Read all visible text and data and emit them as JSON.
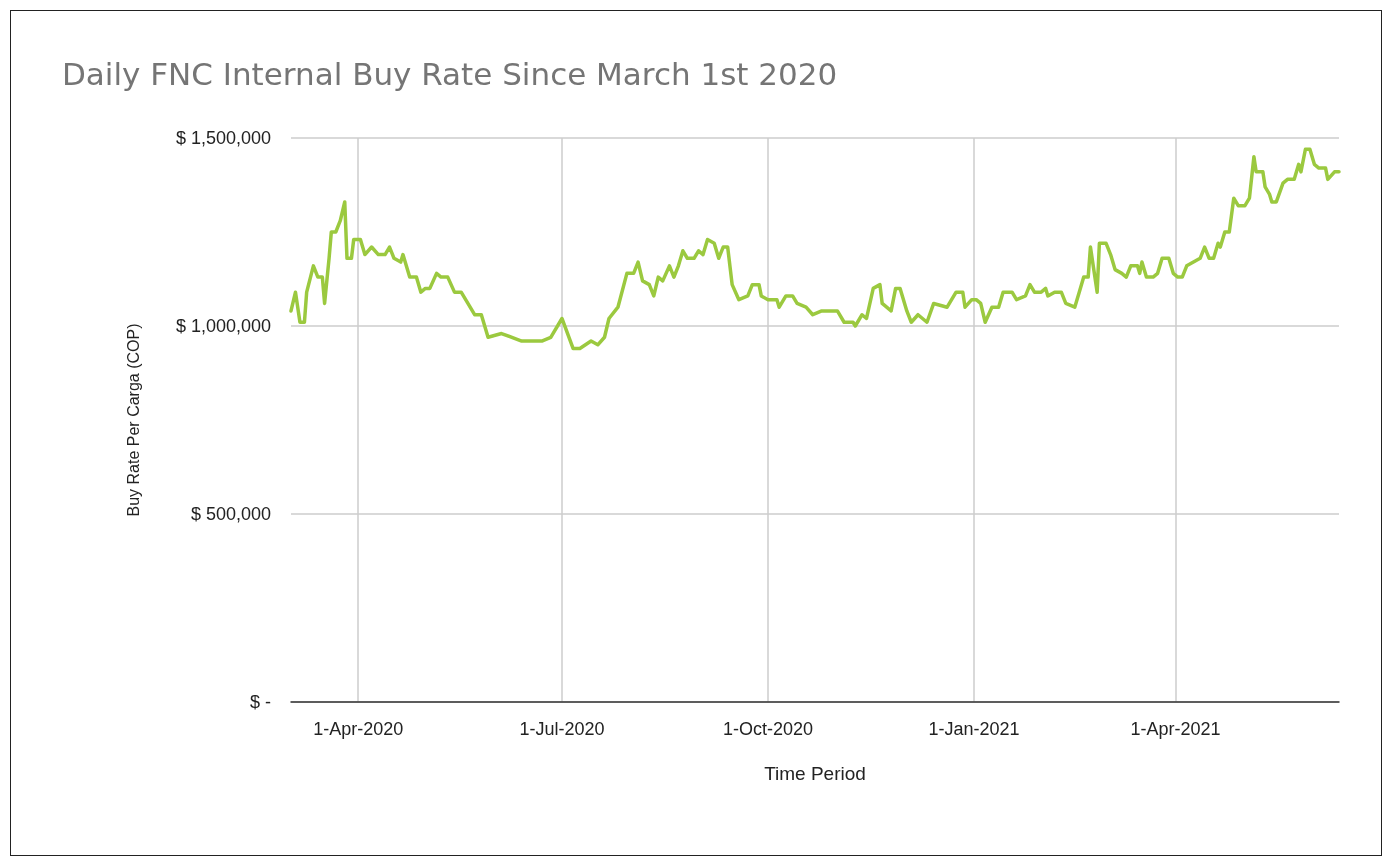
{
  "chart_data": {
    "type": "line",
    "title": "Daily FNC Internal Buy Rate Since March 1st 2020",
    "xlabel": "Time Period",
    "ylabel": "Buy Rate Per Carga (COP)",
    "xlim": [
      "2020-03-02",
      "2021-06-13"
    ],
    "xticks": [
      {
        "value": "2020-04-01",
        "label": "1-Apr-2020"
      },
      {
        "value": "2020-07-01",
        "label": "1-Jul-2020"
      },
      {
        "value": "2020-10-01",
        "label": "1-Oct-2020"
      },
      {
        "value": "2021-01-01",
        "label": "1-Jan-2021"
      },
      {
        "value": "2021-04-01",
        "label": "1-Apr-2021"
      }
    ],
    "ylim": [
      0,
      1500000
    ],
    "yticks": [
      {
        "value": 0,
        "label": "$ -"
      },
      {
        "value": 500000,
        "label": "$ 500,000"
      },
      {
        "value": 1000000,
        "label": "$ 1,000,000"
      },
      {
        "value": 1500000,
        "label": "$ 1,500,000"
      }
    ],
    "grid": true,
    "marker": "none",
    "line_style": "solid",
    "x": [
      "2020-03-02",
      "2020-03-04",
      "2020-03-06",
      "2020-03-08",
      "2020-03-09",
      "2020-03-12",
      "2020-03-14",
      "2020-03-16",
      "2020-03-17",
      "2020-03-19",
      "2020-03-20",
      "2020-03-22",
      "2020-03-24",
      "2020-03-26",
      "2020-03-27",
      "2020-03-29",
      "2020-03-30",
      "2020-04-02",
      "2020-04-04",
      "2020-04-07",
      "2020-04-10",
      "2020-04-13",
      "2020-04-15",
      "2020-04-17",
      "2020-04-20",
      "2020-04-21",
      "2020-04-24",
      "2020-04-27",
      "2020-04-29",
      "2020-05-01",
      "2020-05-03",
      "2020-05-06",
      "2020-05-08",
      "2020-05-11",
      "2020-05-14",
      "2020-05-17",
      "2020-05-20",
      "2020-05-23",
      "2020-05-26",
      "2020-05-29",
      "2020-06-04",
      "2020-06-13",
      "2020-06-22",
      "2020-06-26",
      "2020-07-01",
      "2020-07-06",
      "2020-07-09",
      "2020-07-14",
      "2020-07-17",
      "2020-07-20",
      "2020-07-22",
      "2020-07-26",
      "2020-07-30",
      "2020-08-02",
      "2020-08-04",
      "2020-08-06",
      "2020-08-09",
      "2020-08-11",
      "2020-08-13",
      "2020-08-15",
      "2020-08-18",
      "2020-08-20",
      "2020-08-22",
      "2020-08-24",
      "2020-08-26",
      "2020-08-29",
      "2020-08-31",
      "2020-09-02",
      "2020-09-04",
      "2020-09-07",
      "2020-09-09",
      "2020-09-11",
      "2020-09-13",
      "2020-09-15",
      "2020-09-18",
      "2020-09-22",
      "2020-09-24",
      "2020-09-27",
      "2020-09-28",
      "2020-10-01",
      "2020-10-05",
      "2020-10-06",
      "2020-10-09",
      "2020-10-12",
      "2020-10-14",
      "2020-10-18",
      "2020-10-21",
      "2020-10-25",
      "2020-11-01",
      "2020-11-04",
      "2020-11-08",
      "2020-11-09",
      "2020-11-12",
      "2020-11-14",
      "2020-11-17",
      "2020-11-20",
      "2020-11-21",
      "2020-11-23",
      "2020-11-25",
      "2020-11-27",
      "2020-11-29",
      "2020-12-02",
      "2020-12-04",
      "2020-12-07",
      "2020-12-11",
      "2020-12-14",
      "2020-12-20",
      "2020-12-24",
      "2020-12-27",
      "2020-12-28",
      "2020-12-31",
      "2021-01-02",
      "2021-01-04",
      "2021-01-06",
      "2021-01-09",
      "2021-01-12",
      "2021-01-14",
      "2021-01-18",
      "2021-01-20",
      "2021-01-24",
      "2021-01-26",
      "2021-01-28",
      "2021-01-31",
      "2021-02-02",
      "2021-02-03",
      "2021-02-06",
      "2021-02-09",
      "2021-02-11",
      "2021-02-15",
      "2021-02-17",
      "2021-02-19",
      "2021-02-21",
      "2021-02-22",
      "2021-02-25",
      "2021-02-26",
      "2021-03-01",
      "2021-03-03",
      "2021-03-05",
      "2021-03-08",
      "2021-03-10",
      "2021-03-12",
      "2021-03-15",
      "2021-03-16",
      "2021-03-17",
      "2021-03-19",
      "2021-03-22",
      "2021-03-24",
      "2021-03-26",
      "2021-03-29",
      "2021-03-31",
      "2021-04-02",
      "2021-04-04",
      "2021-04-06",
      "2021-04-09",
      "2021-04-12",
      "2021-04-14",
      "2021-04-16",
      "2021-04-18",
      "2021-04-20",
      "2021-04-21",
      "2021-04-23",
      "2021-04-25",
      "2021-04-27",
      "2021-04-29",
      "2021-05-02",
      "2021-05-04",
      "2021-05-06",
      "2021-05-07",
      "2021-05-10",
      "2021-05-11",
      "2021-05-13",
      "2021-05-14",
      "2021-05-16",
      "2021-05-19",
      "2021-05-21",
      "2021-05-24",
      "2021-05-26",
      "2021-05-27",
      "2021-05-29",
      "2021-05-31",
      "2021-06-02",
      "2021-06-04",
      "2021-06-07",
      "2021-06-08",
      "2021-06-11",
      "2021-06-13"
    ],
    "series": [
      {
        "color": "#9bc93f",
        "values": [
          1040000,
          1090000,
          1010000,
          1010000,
          1090000,
          1160000,
          1130000,
          1130000,
          1060000,
          1180000,
          1250000,
          1250000,
          1280000,
          1330000,
          1180000,
          1180000,
          1230000,
          1230000,
          1190000,
          1210000,
          1190000,
          1190000,
          1210000,
          1180000,
          1170000,
          1190000,
          1130000,
          1130000,
          1090000,
          1100000,
          1100000,
          1140000,
          1130000,
          1130000,
          1090000,
          1090000,
          1060000,
          1030000,
          1030000,
          970000,
          980000,
          960000,
          960000,
          970000,
          1020000,
          940000,
          940000,
          960000,
          950000,
          970000,
          1020000,
          1050000,
          1140000,
          1140000,
          1170000,
          1120000,
          1110000,
          1080000,
          1130000,
          1120000,
          1160000,
          1130000,
          1160000,
          1200000,
          1180000,
          1180000,
          1200000,
          1190000,
          1230000,
          1220000,
          1180000,
          1210000,
          1210000,
          1110000,
          1070000,
          1080000,
          1110000,
          1110000,
          1080000,
          1070000,
          1070000,
          1050000,
          1080000,
          1080000,
          1060000,
          1050000,
          1030000,
          1040000,
          1040000,
          1010000,
          1010000,
          1000000,
          1030000,
          1020000,
          1100000,
          1110000,
          1060000,
          1050000,
          1040000,
          1100000,
          1100000,
          1040000,
          1010000,
          1030000,
          1010000,
          1060000,
          1050000,
          1090000,
          1090000,
          1050000,
          1070000,
          1070000,
          1060000,
          1010000,
          1050000,
          1050000,
          1090000,
          1090000,
          1070000,
          1080000,
          1110000,
          1090000,
          1090000,
          1100000,
          1080000,
          1090000,
          1090000,
          1060000,
          1050000,
          1090000,
          1130000,
          1130000,
          1210000,
          1090000,
          1220000,
          1220000,
          1190000,
          1150000,
          1140000,
          1130000,
          1160000,
          1160000,
          1140000,
          1170000,
          1130000,
          1130000,
          1140000,
          1180000,
          1180000,
          1140000,
          1130000,
          1130000,
          1160000,
          1170000,
          1180000,
          1210000,
          1180000,
          1180000,
          1220000,
          1210000,
          1250000,
          1250000,
          1340000,
          1320000,
          1320000,
          1340000,
          1450000,
          1410000,
          1410000,
          1370000,
          1350000,
          1330000,
          1330000,
          1380000,
          1390000,
          1390000,
          1430000,
          1410000,
          1470000,
          1470000,
          1430000,
          1420000,
          1420000,
          1390000,
          1410000,
          1410000
        ]
      }
    ]
  }
}
